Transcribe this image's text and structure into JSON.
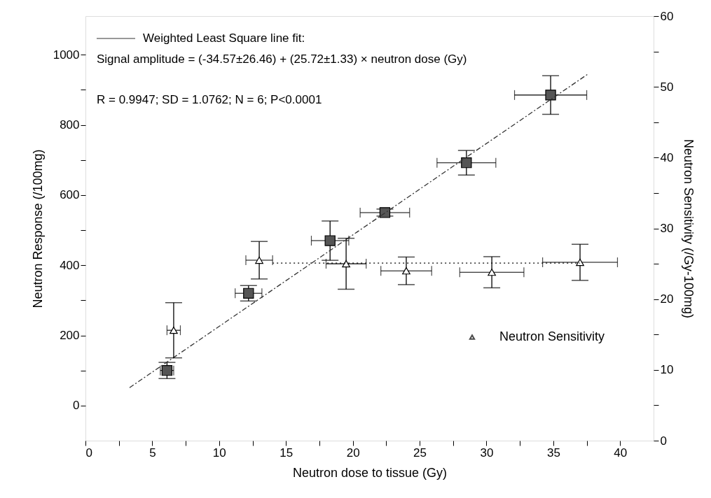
{
  "chart_data": {
    "type": "scatter",
    "xlabel": "Neutron dose to tissue (Gy)",
    "ylabel": "Neutron Response (/100mg)",
    "y2label": "Neutron Sensitivity (/Gy-100mg)",
    "xlim": [
      0,
      42.5
    ],
    "xticks": [
      0,
      {
        "value": 2.5,
        "label": null
      },
      5,
      {
        "value": 7.5,
        "label": null
      },
      10,
      {
        "value": 12.5,
        "label": null
      },
      15,
      {
        "value": 17.5,
        "label": null
      },
      20,
      {
        "value": 22.5,
        "label": null
      },
      25,
      {
        "value": 27.5,
        "label": null
      },
      30,
      {
        "value": 32.5,
        "label": null
      },
      35,
      {
        "value": 37.5,
        "label": null
      },
      40
    ],
    "ylim": [
      -100,
      1110
    ],
    "yticks": [
      0,
      {
        "value": 100,
        "label": null
      },
      200,
      {
        "value": 300,
        "label": null
      },
      400,
      {
        "value": 500,
        "label": null
      },
      600,
      {
        "value": 700,
        "label": null
      },
      800,
      {
        "value": 900,
        "label": null
      },
      1000
    ],
    "y2lim": [
      0,
      60
    ],
    "y2ticks": [
      0,
      {
        "value": 5,
        "label": null
      },
      10,
      {
        "value": 15,
        "label": null
      },
      20,
      {
        "value": 25,
        "label": null
      },
      30,
      {
        "value": 35,
        "label": null
      },
      40,
      {
        "value": 45,
        "label": null
      },
      50,
      {
        "value": 55,
        "label": null
      },
      60
    ],
    "grid": false,
    "legend": "top left",
    "annotations": [
      "Signal amplitude = (-34.57±26.46) + (25.72±1.33) × neutron dose (Gy)",
      "R = 0.9947; SD = 1.0762; N = 6; P<0.0001"
    ],
    "series": [
      {
        "color": "#555555",
        "marker": "square",
        "x": [
          6.1,
          12.2,
          18.3,
          22.4,
          28.5,
          34.8
        ],
        "values": [
          100,
          320,
          470,
          550,
          692,
          885
        ],
        "errors": [
          23,
          22,
          56,
          10,
          35,
          55
        ],
        "xerrors": [
          0.5,
          1.0,
          1.4,
          1.85,
          2.2,
          2.7
        ]
      },
      {
        "name": "Neutron Sensitivity",
        "axis": "y2",
        "color": "#000000",
        "marker": "triangle",
        "x": [
          6.6,
          13.0,
          19.5,
          24.0,
          30.4,
          37.0
        ],
        "values": [
          15.6,
          25.5,
          25.0,
          24.0,
          23.8,
          25.2
        ],
        "errors": [
          3.9,
          2.65,
          3.6,
          1.95,
          2.2,
          2.55
        ],
        "xerrors": [
          0.5,
          1.0,
          1.5,
          1.9,
          2.4,
          2.8
        ]
      },
      {
        "type": "line",
        "name": "Weighted Least Square line fit:",
        "color": "#333333",
        "line_style": "dashed",
        "x": [
          3.3,
          37.6
        ],
        "values": [
          51,
          945
        ]
      },
      {
        "type": "line",
        "axis": "y2",
        "color": "#000000",
        "line_style": "dotted",
        "x": [
          14.0,
          37.0
        ],
        "values": [
          25.1,
          25.1
        ]
      }
    ]
  }
}
